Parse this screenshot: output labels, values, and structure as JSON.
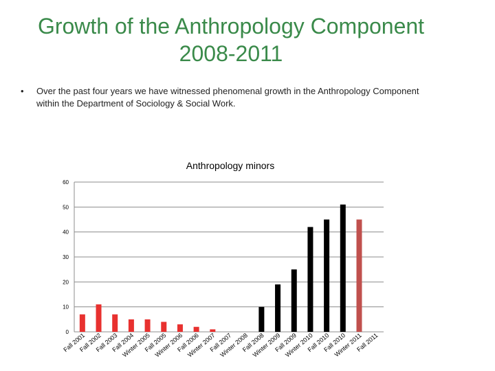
{
  "slide": {
    "title_line1": "Growth of the Anthropology Component",
    "title_line2": "2008-2011",
    "bullet_symbol": "•",
    "bullet_text": "Over the past four years we have witnessed phenomenal growth in the Anthropology Component within the Department of Sociology & Social Work."
  },
  "chart_data": {
    "type": "bar",
    "title": "Anthropology minors",
    "xlabel": "",
    "ylabel": "",
    "ylim": [
      0,
      60
    ],
    "yticks": [
      0,
      10,
      20,
      30,
      40,
      50,
      60
    ],
    "grid": true,
    "categories": [
      "Fall 2001",
      "Fall 2002",
      "Fall 2003",
      "Fall 2004",
      "Winter 2005",
      "Fall 2005",
      "Winter 2006",
      "Fall 2006",
      "Winter 2007",
      "Fall 2007",
      "Winter 2008",
      "Fall 2008",
      "Winter 2009",
      "Fall 2009",
      "Winter 2010",
      "Fall 2010",
      "Fall 2010",
      "Winter 2011",
      "Fall 2011"
    ],
    "values": [
      7,
      11,
      7,
      5,
      5,
      4,
      3,
      2,
      1,
      0,
      0,
      10,
      19,
      25,
      42,
      45,
      51,
      45,
      null
    ],
    "bar_colors": [
      "#e8312f",
      "#e8312f",
      "#e8312f",
      "#e8312f",
      "#e8312f",
      "#e8312f",
      "#e8312f",
      "#e8312f",
      "#e8312f",
      "#e8312f",
      "#e8312f",
      "#000000",
      "#000000",
      "#000000",
      "#000000",
      "#000000",
      "#000000",
      "#c0504d",
      "#c0504d"
    ]
  }
}
